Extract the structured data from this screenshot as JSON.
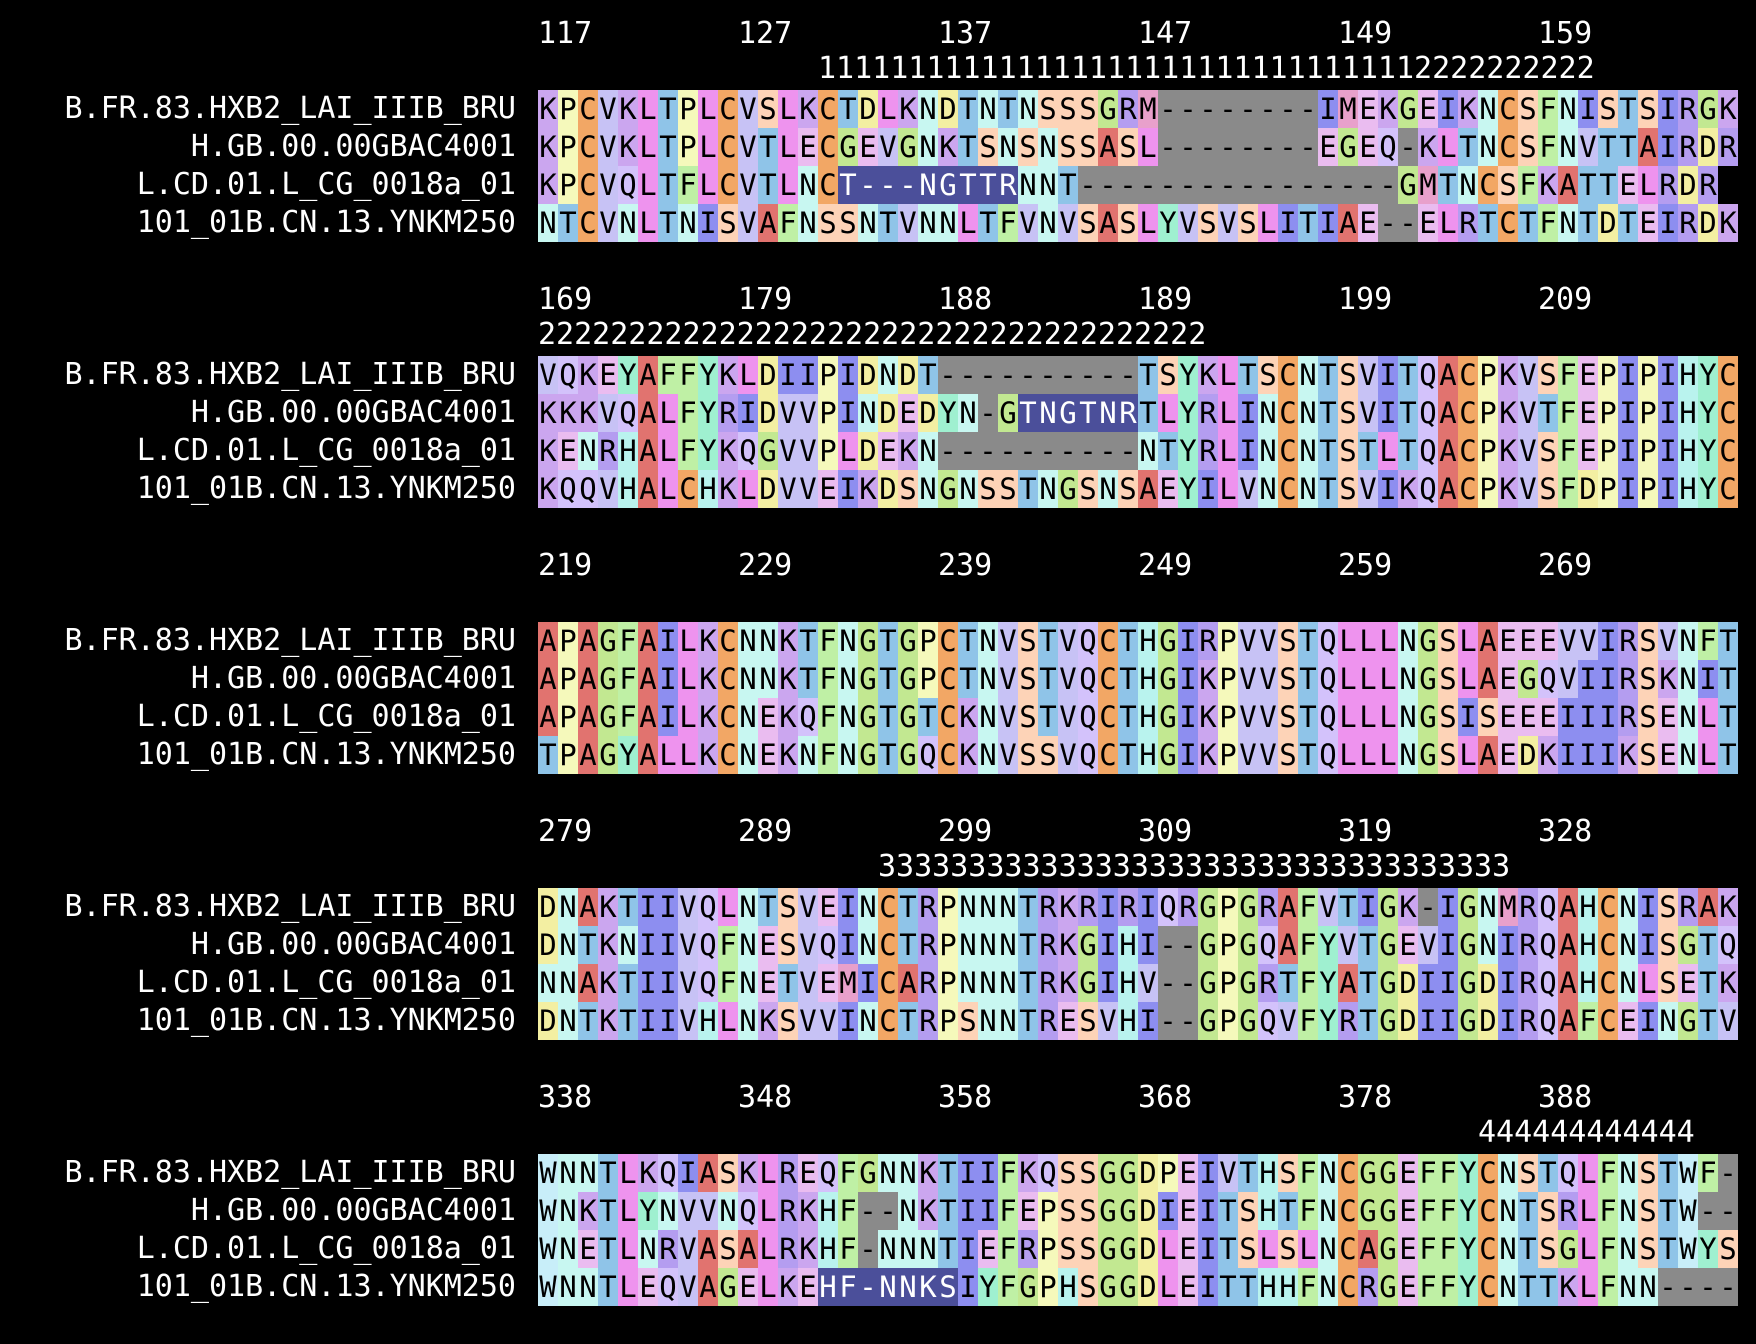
{
  "alignment": {
    "sequence_names": [
      "B.FR.83.HXB2_LAI_IIIB_BRU",
      "H.GB.00.00GBAC4001",
      "L.CD.01.L_CG_0018a_01",
      "101_01B.CN.13.YNKM250"
    ],
    "blocks": [
      {
        "positions": [
          "117",
          "127",
          "137",
          "147",
          "149",
          "159"
        ],
        "region_label": "1111111111111111111111111111111112222222222",
        "region_start_col": 14,
        "rows": [
          "KPCVKLTPLCVSLKCTDLKNDTNTNSSSGRM--------IMEKGEIKNCSFNISTSIRGK",
          "KPCVKLTPLCVTLECGEVGNKTSNSNSSASL--------EGEQ-KLTNCSFNVTTAIRDR",
          "KPCVQLTFLCVTLNCT---NGTTRNNT----------------GMTNCSFKATTELRDR",
          "NTCVNLTNISVAFNSSNTVNNLTFVNVSASLYVSVSLITIAE--ELRTCTFNTDTEIRDK"
        ],
        "highlights": [
          {
            "row": 2,
            "from": 15,
            "to": 24
          }
        ]
      },
      {
        "positions": [
          "169",
          "179",
          "188",
          "189",
          "199",
          "209"
        ],
        "region_label": "2222222222222222222222222222222222222",
        "region_start_col": 0,
        "rows": [
          "VQKEYAFFYKLDIIPIDNDT----------TSYKLTSCNTSVITQACPKVSFEPIPIHYC",
          "KKKVQALFYRIDVVPINDEDYN-GTNGTNRTLYRLINCNTSVITQACPKVTFEPIPIHYC",
          "KENRHALFYKQGVVPLDEKN----------NTYRLINCNTSTLTQACPKVSFEPIPIHYC",
          "KQQVHALCHKLDVVEIKDSNGNSSTNGSNSAEYILVNCNTSVIKQACPKVSFDPIPIHYC"
        ],
        "highlights": [
          {
            "row": 1,
            "from": 24,
            "to": 30
          }
        ]
      },
      {
        "positions": [
          "219",
          "229",
          "239",
          "249",
          "259",
          "269"
        ],
        "region_label": "",
        "region_start_col": 0,
        "rows": [
          "APAGFAILKCNNKTFNGTGPCTNVSTVQCTHGIRPVVSTQLLLNGSLAEEEVVIRSVNFT",
          "APAGFAILKCNNKTFNGTGPCTNVSTVQCTHGIKPVVSTQLLLNGSLAEGQVIIRSKNIT",
          "APAGFAILKCNEKQFNGTGTCKNVSTVQCTHGIKPVVSTQLLLNGSISEEEIIIRSENLT",
          "TPAGYALLKCNEKNFNGTGQCKNVSSVQCTHGIKPVVSTQLLLNGSLAEDKIIIKSENLT"
        ],
        "highlights": []
      },
      {
        "positions": [
          "279",
          "289",
          "299",
          "309",
          "319",
          "328"
        ],
        "region_label": "33333333333333333333333333333333333",
        "region_start_col": 17,
        "rows": [
          "DNAKTIIVQLNTSVEINCTRPNNNTRKRIRIQRGPGRAFVTIGK-IGNMRQAHCNISRAK",
          "DNTKNIIVQFNESVQINCTRPNNNTRKGIHI--GPGQAFYVTGEVIGNIRQAHCNISGTQ",
          "NNAKTIIVQFNETVEMICARPNNNTRKGIHV--GPGRTFYATGDIIGDIRQAHCNLSETK",
          "DNTKTIIVHLNKSVVINCTRPSNNTRESVHI--GPGQVFYRTGDIIGDIRQAFCEINGTV"
        ],
        "highlights": []
      },
      {
        "positions": [
          "338",
          "348",
          "358",
          "368",
          "378",
          "388"
        ],
        "region_label": "444444444444",
        "region_start_col": 47,
        "rows": [
          "WNNTLKQIASKLREQFGNNKTIIFKQSSGGDPEIVTHSFNCGGEFFYCNSTQLFNSTWF-",
          "WNKTLYNVVNQLRKHF--NKTIIFEPSSGGDIEITSHTFNCGGEFFYCNTSRLFNSTW--",
          "WNETLNRVASALRKHF-NNNTIEFRPSSGGDLEITSLSLNCAGEFFYCNTSGLFNSTWYS",
          "WNNTLEQVAGELKEHF-NNKSIYFGPHSGGDLEITTHHFNCRGEFFYCNTTKLFNN----"
        ],
        "highlights": [
          {
            "row": 3,
            "from": 14,
            "to": 21
          }
        ]
      }
    ],
    "colors": {
      "A": "#e1736f",
      "C": "#f2a765",
      "D": "#f3efa2",
      "E": "#eabcf0",
      "F": "#bff0a5",
      "G": "#c2e891",
      "H": "#b9f3ee",
      "I": "#8d8ef0",
      "K": "#cba6ef",
      "L": "#ee93ee",
      "M": "#e8a0cb",
      "N": "#c8f7f1",
      "P": "#f5f9bb",
      "Q": "#d3c2fb",
      "R": "#b49df0",
      "S": "#fdd3b7",
      "T": "#8fc4e8",
      "V": "#c7c2f5",
      "W": "#c8eef9",
      "Y": "#9ff0d0",
      "-": "#8a8a8a",
      "highlight": "#4b4f9a",
      "highlight_text": "#ffffff"
    }
  }
}
